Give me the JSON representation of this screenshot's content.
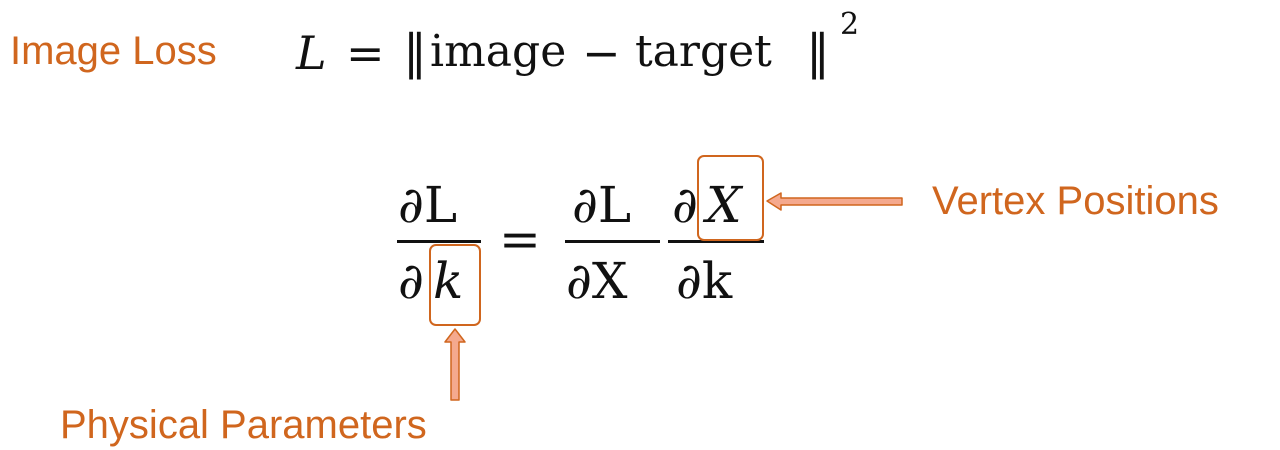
{
  "labels": {
    "image_loss": "Image Loss",
    "vertex_positions": "Vertex Positions",
    "physical_parameters": "Physical Parameters"
  },
  "equation1": {
    "lhs": "L",
    "equals": "=",
    "norm_open": "‖",
    "word1": "image",
    "minus": "−",
    "word2": "target",
    "norm_close": "‖",
    "exponent": "2"
  },
  "equation2": {
    "lhs_num": "∂L",
    "lhs_den_partial": "∂",
    "lhs_den_var": "k",
    "equals": "=",
    "rhs1_num": "∂L",
    "rhs1_den": "∂X",
    "rhs2_num_partial": "∂",
    "rhs2_num_var": "X",
    "rhs2_den": "∂k"
  },
  "colors": {
    "label": "#d0661e",
    "arrow_fill": "#f5a98e",
    "arrow_stroke": "#d0661e",
    "box": "#d0661e",
    "math": "#111111"
  }
}
